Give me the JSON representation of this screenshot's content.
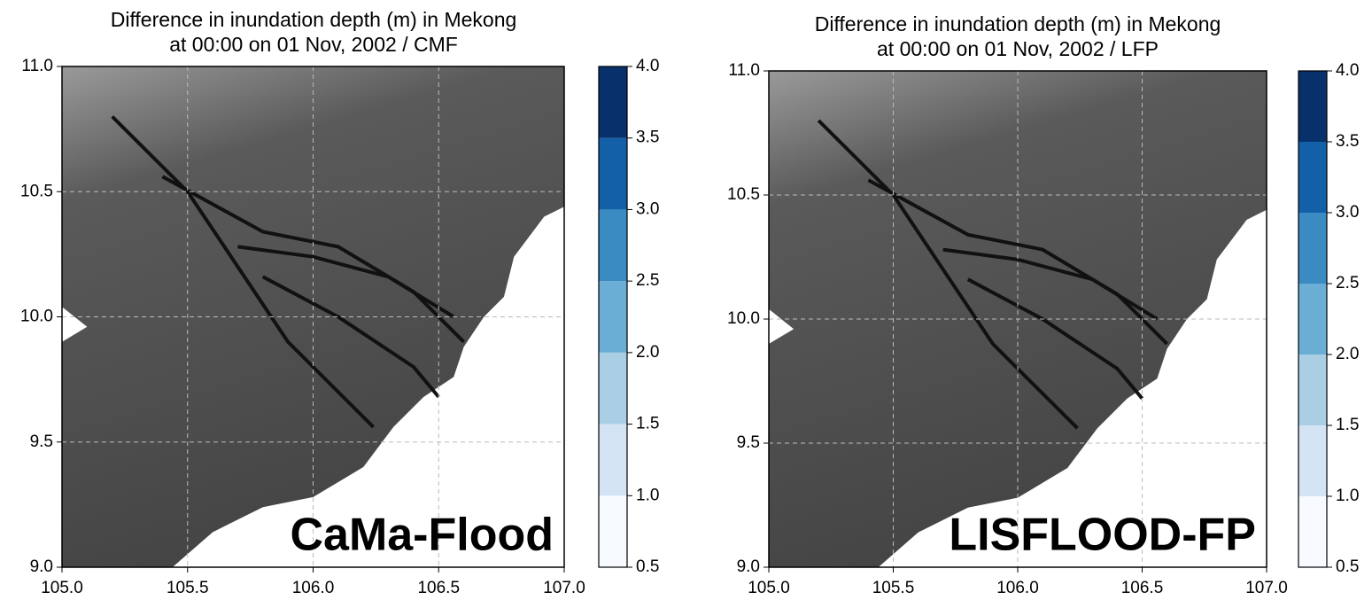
{
  "chart_data": [
    {
      "type": "map",
      "title": [
        "Difference in inundation depth (m) in Mekong",
        "at 00:00 on 01 Nov, 2002 / CMF"
      ],
      "annotation": "CaMa-Flood",
      "xlim": [
        105,
        107
      ],
      "ylim": [
        9,
        11
      ],
      "xticks": [
        {
          "value": 105,
          "label": "105.0"
        },
        105.5,
        {
          "value": 106,
          "label": "106.0"
        },
        106.5,
        {
          "value": 107,
          "label": "107.0"
        }
      ],
      "yticks": [
        {
          "value": 9,
          "label": "9.0"
        },
        9.5,
        {
          "value": 10,
          "label": "10.0"
        },
        10.5,
        {
          "value": 11,
          "label": "11.0"
        }
      ],
      "grid": true,
      "colorbar": {
        "ticks": [
          0.5,
          {
            "value": 1,
            "label": "1.0"
          },
          1.5,
          {
            "value": 2,
            "label": "2.0"
          },
          2.5,
          {
            "value": 3,
            "label": "3.0"
          },
          3.5,
          {
            "value": 4,
            "label": "4.0"
          }
        ],
        "colors": [
          "#f7fbff",
          "#d4e4f4",
          "#aacfe5",
          "#6aaed6",
          "#3a8bc2",
          "#1460a8",
          "#08306b"
        ]
      }
    },
    {
      "type": "map",
      "title": [
        "Difference in inundation depth (m) in Mekong",
        "at 00:00 on 01 Nov, 2002 / LFP"
      ],
      "annotation": "LISFLOOD-FP",
      "xlim": [
        105,
        107
      ],
      "ylim": [
        9,
        11
      ],
      "xticks": [
        {
          "value": 105,
          "label": "105.0"
        },
        105.5,
        {
          "value": 106,
          "label": "106.0"
        },
        106.5,
        {
          "value": 107,
          "label": "107.0"
        }
      ],
      "yticks": [
        {
          "value": 9,
          "label": "9.0"
        },
        9.5,
        {
          "value": 10,
          "label": "10.0"
        },
        10.5,
        {
          "value": 11,
          "label": "11.0"
        }
      ],
      "grid": true,
      "colorbar": {
        "ticks": [
          0.5,
          {
            "value": 1,
            "label": "1.0"
          },
          1.5,
          {
            "value": 2,
            "label": "2.0"
          },
          2.5,
          {
            "value": 3,
            "label": "3.0"
          },
          3.5,
          {
            "value": 4,
            "label": "4.0"
          }
        ],
        "colors": [
          "#f7fbff",
          "#d4e4f4",
          "#aacfe5",
          "#6aaed6",
          "#3a8bc2",
          "#1460a8",
          "#08306b"
        ]
      }
    }
  ]
}
